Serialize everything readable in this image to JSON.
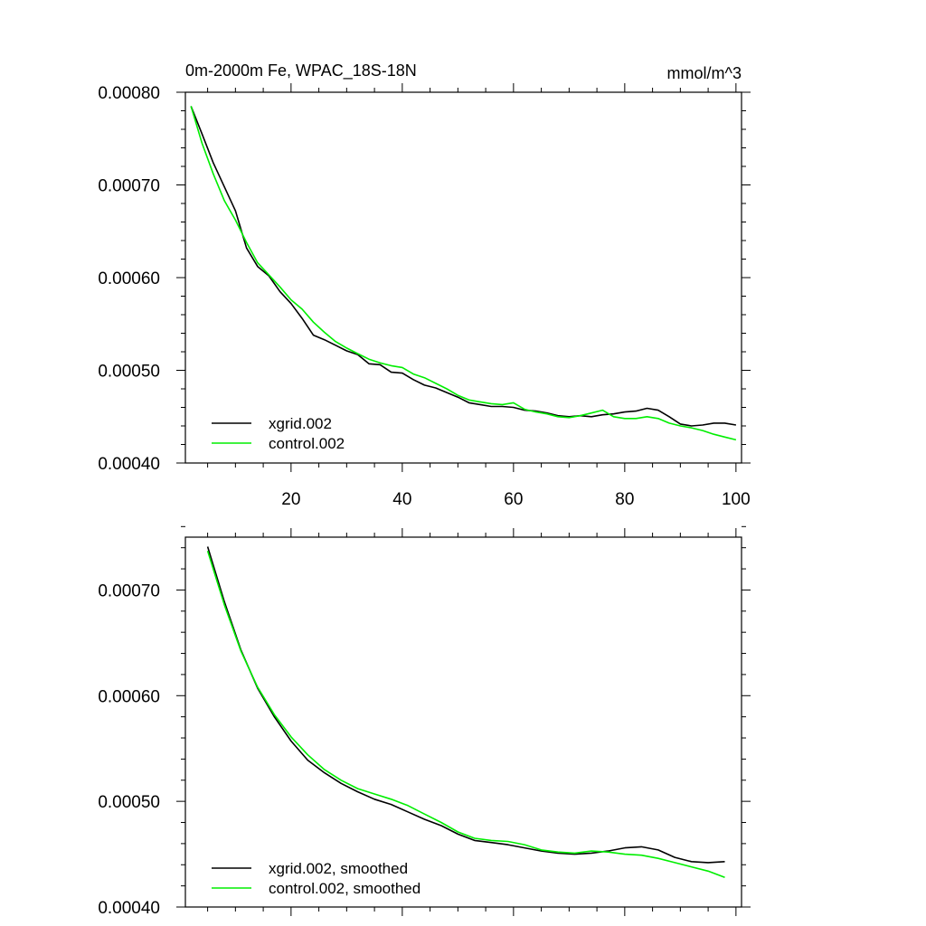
{
  "chart_data": [
    {
      "type": "line",
      "title": "0m-2000m Fe, WPAC_18S-18N",
      "units": "mmol/m^3",
      "xlim": [
        1,
        101
      ],
      "ylim": [
        0.0004,
        0.0008
      ],
      "xticks": [
        20,
        40,
        60,
        80,
        100
      ],
      "yticks": [
        0.0004,
        0.0005,
        0.0006,
        0.0007,
        0.0008
      ],
      "ytick_labels": [
        "0.00040",
        "0.00050",
        "0.00060",
        "0.00070",
        "0.00080"
      ],
      "xtick_labels": [
        "20",
        "40",
        "60",
        "80",
        "100"
      ],
      "legend_position": "bottom-left",
      "series": [
        {
          "name": "xgrid.002",
          "color": "#000000",
          "x": [
            2,
            4,
            6,
            8,
            10,
            12,
            14,
            16,
            18,
            20,
            22,
            24,
            26,
            28,
            30,
            32,
            34,
            36,
            38,
            40,
            42,
            44,
            46,
            48,
            50,
            52,
            54,
            56,
            58,
            60,
            62,
            64,
            66,
            68,
            70,
            72,
            74,
            76,
            78,
            80,
            82,
            84,
            86,
            88,
            90,
            92,
            94,
            96,
            98,
            100
          ],
          "y": [
            0.000785,
            0.000755,
            0.000724,
            0.000698,
            0.000672,
            0.000632,
            0.000612,
            0.000602,
            0.000585,
            0.000572,
            0.000556,
            0.000538,
            0.000533,
            0.000527,
            0.000521,
            0.000517,
            0.000507,
            0.000506,
            0.000498,
            0.000497,
            0.00049,
            0.000484,
            0.000481,
            0.000476,
            0.000471,
            0.000465,
            0.000463,
            0.000461,
            0.000461,
            0.00046,
            0.000457,
            0.000456,
            0.000454,
            0.000451,
            0.00045,
            0.000451,
            0.00045,
            0.000452,
            0.000453,
            0.000455,
            0.000456,
            0.000459,
            0.000457,
            0.00045,
            0.000442,
            0.00044,
            0.000441,
            0.000443,
            0.000443,
            0.000441
          ]
        },
        {
          "name": "control.002",
          "color": "#00ee00",
          "x": [
            2,
            4,
            6,
            8,
            10,
            12,
            14,
            16,
            18,
            20,
            22,
            24,
            26,
            28,
            30,
            32,
            34,
            36,
            38,
            40,
            42,
            44,
            46,
            48,
            50,
            52,
            54,
            56,
            58,
            60,
            62,
            64,
            66,
            68,
            70,
            72,
            74,
            76,
            78,
            80,
            82,
            84,
            86,
            88,
            90,
            92,
            94,
            96,
            98,
            100
          ],
          "y": [
            0.000785,
            0.000745,
            0.000712,
            0.000683,
            0.000662,
            0.000638,
            0.000616,
            0.000603,
            0.00059,
            0.000576,
            0.000566,
            0.000552,
            0.000541,
            0.000531,
            0.000524,
            0.000518,
            0.000512,
            0.000508,
            0.000505,
            0.000503,
            0.000496,
            0.000492,
            0.000486,
            0.00048,
            0.000473,
            0.000468,
            0.000466,
            0.000464,
            0.000463,
            0.000465,
            0.000458,
            0.000455,
            0.000453,
            0.00045,
            0.000449,
            0.000451,
            0.000454,
            0.000457,
            0.00045,
            0.000448,
            0.000448,
            0.00045,
            0.000448,
            0.000443,
            0.00044,
            0.000438,
            0.000435,
            0.000431,
            0.000428,
            0.000425
          ]
        }
      ]
    },
    {
      "type": "line",
      "title": "",
      "xlim": [
        1,
        101
      ],
      "ylim": [
        0.0004,
        0.00075
      ],
      "xticks": [
        20,
        40,
        60,
        80,
        100
      ],
      "yticks": [
        0.0004,
        0.0005,
        0.0006,
        0.0007
      ],
      "ytick_labels": [
        "0.00040",
        "0.00050",
        "0.00060",
        "0.00070"
      ],
      "legend_position": "bottom-left",
      "series": [
        {
          "name": "xgrid.002, smoothed",
          "color": "#000000",
          "x": [
            5,
            8,
            11,
            14,
            17,
            20,
            23,
            26,
            29,
            32,
            35,
            38,
            41,
            44,
            47,
            50,
            53,
            56,
            59,
            62,
            65,
            68,
            71,
            74,
            77,
            80,
            83,
            86,
            89,
            92,
            95,
            98
          ],
          "y": [
            0.000741,
            0.000689,
            0.000643,
            0.000607,
            0.00058,
            0.000557,
            0.000539,
            0.000527,
            0.000517,
            0.000509,
            0.000502,
            0.000497,
            0.00049,
            0.000483,
            0.000477,
            0.000469,
            0.000463,
            0.000461,
            0.000459,
            0.000456,
            0.000453,
            0.000451,
            0.00045,
            0.000451,
            0.000453,
            0.000456,
            0.000457,
            0.000454,
            0.000447,
            0.000443,
            0.000442,
            0.000443
          ]
        },
        {
          "name": "control.002, smoothed",
          "color": "#00ee00",
          "x": [
            5,
            8,
            11,
            14,
            17,
            20,
            23,
            26,
            29,
            32,
            35,
            38,
            41,
            44,
            47,
            50,
            53,
            56,
            59,
            62,
            65,
            68,
            71,
            74,
            77,
            80,
            83,
            86,
            89,
            92,
            95,
            98
          ],
          "y": [
            0.000737,
            0.000686,
            0.000642,
            0.000608,
            0.000582,
            0.000561,
            0.000544,
            0.00053,
            0.00052,
            0.000512,
            0.000507,
            0.000502,
            0.000496,
            0.000488,
            0.00048,
            0.000471,
            0.000465,
            0.000463,
            0.000462,
            0.000459,
            0.000454,
            0.000452,
            0.000451,
            0.000453,
            0.000452,
            0.00045,
            0.000449,
            0.000446,
            0.000442,
            0.000438,
            0.000434,
            0.000428
          ]
        }
      ]
    }
  ]
}
